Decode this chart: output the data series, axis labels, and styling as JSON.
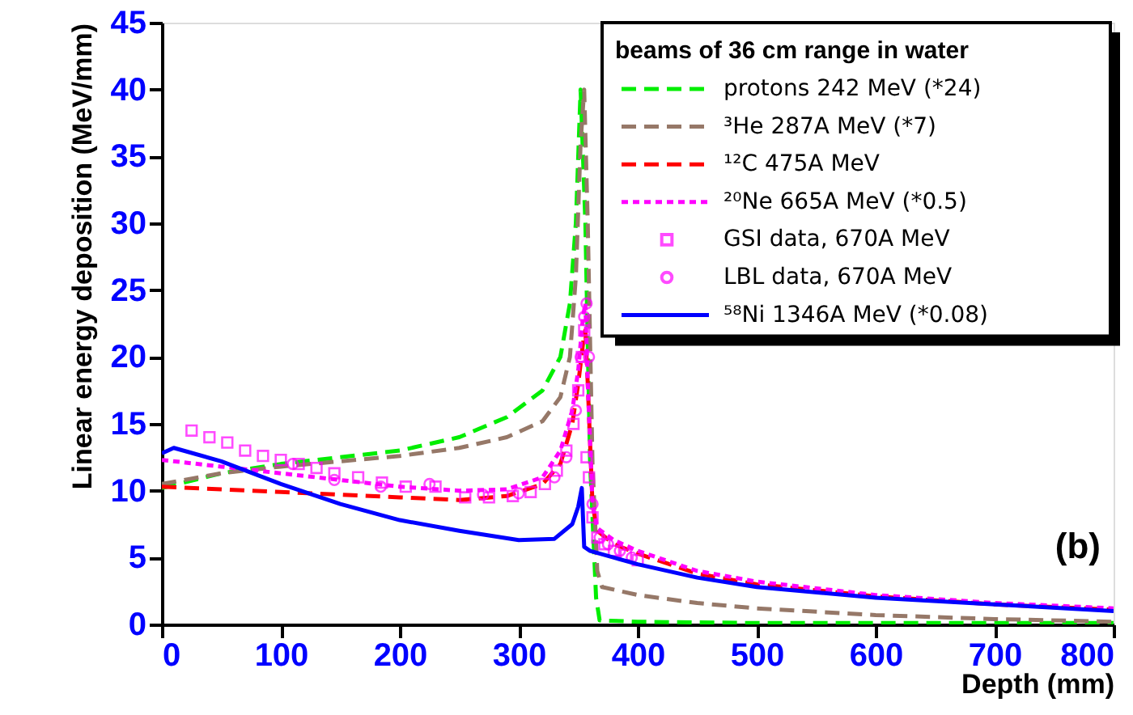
{
  "chart_data": {
    "type": "line",
    "xlabel": "Depth (mm)",
    "ylabel": "Linear energy deposition (MeV/mm)",
    "legend_title": "beams of 36 cm range in water",
    "xlim": [
      0,
      800
    ],
    "xticks": [
      0,
      100,
      200,
      300,
      400,
      500,
      600,
      700,
      800
    ],
    "ylim": [
      0,
      45
    ],
    "yticks": [
      0,
      5,
      10,
      15,
      20,
      25,
      30,
      35,
      40,
      45
    ],
    "grid": false,
    "legend": "top right",
    "annotations": [
      "(b)"
    ],
    "series": [
      {
        "name": "protons 242 MeV (*24)",
        "line_style": "dashed",
        "color": "#00ee00",
        "x": [
          0,
          50,
          100,
          150,
          200,
          250,
          290,
          320,
          335,
          343,
          348,
          352,
          356,
          360,
          365,
          368,
          400,
          500,
          600,
          700,
          800
        ],
        "values": [
          10.2,
          11.3,
          12,
          12.5,
          13,
          14,
          15.5,
          17.5,
          20,
          24,
          30,
          40,
          30,
          12,
          2,
          0.3,
          0.2,
          0.1,
          0.1,
          0.1,
          0.1
        ]
      },
      {
        "name": "³He 287A MeV (*7)",
        "line_style": "dashed",
        "color": "#967868",
        "x": [
          0,
          50,
          100,
          150,
          200,
          250,
          290,
          320,
          335,
          343,
          348,
          352,
          355,
          358,
          362,
          366,
          370,
          400,
          450,
          500,
          600,
          700,
          800
        ],
        "values": [
          10.5,
          11.3,
          11.8,
          12.2,
          12.6,
          13.2,
          14,
          15.2,
          17,
          20,
          26,
          36,
          40,
          30,
          12,
          4,
          2.8,
          2.2,
          1.6,
          1.2,
          0.7,
          0.4,
          0.2
        ]
      },
      {
        "name": "¹²C 475A MeV",
        "line_style": "dashed",
        "color": "#ff0000",
        "x": [
          0,
          50,
          100,
          150,
          200,
          250,
          290,
          320,
          335,
          345,
          350,
          354,
          356,
          358,
          362,
          366,
          380,
          400,
          450,
          500,
          600,
          700,
          800
        ],
        "values": [
          10.3,
          10.1,
          9.9,
          9.7,
          9.5,
          9.3,
          9.6,
          10.5,
          12,
          15,
          18,
          21,
          22,
          18,
          9,
          7,
          6,
          5.3,
          3.8,
          3,
          2.1,
          1.5,
          1.1
        ]
      },
      {
        "name": "²⁰Ne 665A MeV (*0.5)",
        "line_style": "dotted",
        "color": "#ff00ff",
        "x": [
          0,
          50,
          100,
          150,
          200,
          250,
          290,
          320,
          335,
          345,
          350,
          354,
          356,
          358,
          362,
          366,
          380,
          400,
          450,
          500,
          600,
          700,
          800
        ],
        "values": [
          12.3,
          11.8,
          11.3,
          10.8,
          10.3,
          10,
          10.1,
          11,
          13,
          16,
          19,
          23,
          24,
          18,
          9,
          7.2,
          6.3,
          5.5,
          4,
          3.2,
          2.2,
          1.6,
          1.2
        ]
      },
      {
        "name": "GSI data, 670A MeV",
        "type": "scatter",
        "marker": "square",
        "color": "#ff00ff",
        "x": [
          25,
          40,
          55,
          70,
          85,
          100,
          115,
          130,
          145,
          165,
          185,
          205,
          230,
          255,
          275,
          295,
          310,
          322,
          332,
          340,
          346,
          350,
          353,
          355,
          357,
          359,
          362,
          366,
          372,
          380,
          390,
          400
        ],
        "values": [
          14.5,
          14,
          13.6,
          13,
          12.6,
          12.3,
          12,
          11.7,
          11.3,
          11,
          10.6,
          10.3,
          10.3,
          9.5,
          9.5,
          9.6,
          9.9,
          10.5,
          11.5,
          13,
          15,
          17.5,
          20,
          22,
          12.5,
          11,
          8,
          6.5,
          6,
          5.5,
          5.2,
          4.8
        ]
      },
      {
        "name": "LBL data, 670A MeV",
        "type": "scatter",
        "marker": "circle",
        "color": "#ff00ff",
        "x": [
          110,
          145,
          184,
          225,
          270,
          300,
          330,
          340,
          348,
          352,
          355,
          357,
          359,
          362,
          368,
          375,
          385,
          395
        ],
        "values": [
          12,
          10.8,
          10.3,
          10.5,
          9.7,
          9.8,
          11,
          12.5,
          16,
          20,
          23,
          24,
          20,
          9,
          6.5,
          6,
          5.5,
          5
        ]
      },
      {
        "name": "⁵⁸Ni 1346A MeV (*0.08)",
        "line_style": "solid",
        "color": "#0000ff",
        "x": [
          0,
          10,
          50,
          100,
          150,
          200,
          250,
          300,
          330,
          345,
          350,
          353,
          355,
          360,
          380,
          400,
          450,
          500,
          600,
          700,
          800
        ],
        "values": [
          12.8,
          13.2,
          12.2,
          10.5,
          9,
          7.8,
          7,
          6.3,
          6.4,
          7.5,
          8.8,
          10.2,
          5.8,
          5.5,
          5,
          4.5,
          3.5,
          2.8,
          2,
          1.5,
          1.0
        ]
      }
    ]
  }
}
